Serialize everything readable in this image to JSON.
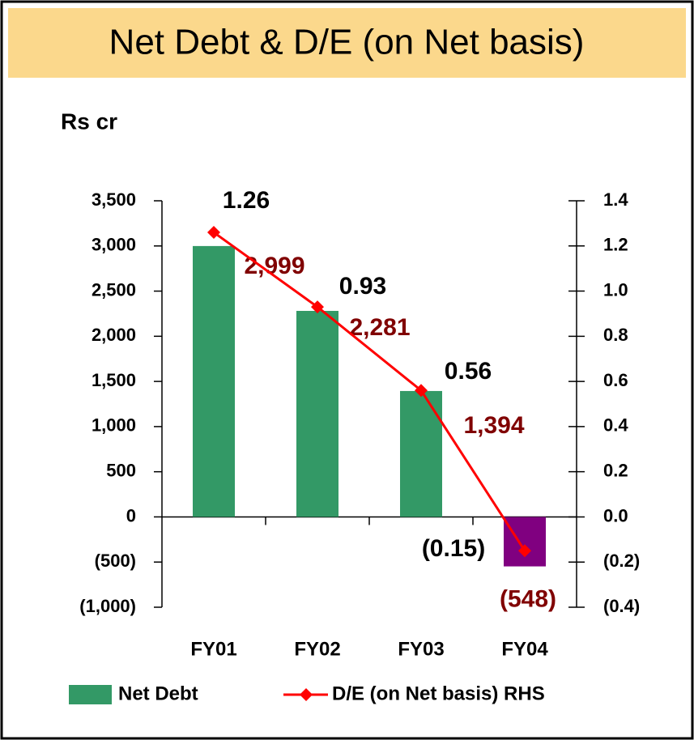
{
  "chart_data": {
    "type": "bar",
    "title": "Net Debt & D/E (on Net basis)",
    "y_axis_label": "Rs cr",
    "categories": [
      "FY01",
      "FY02",
      "FY03",
      "FY04"
    ],
    "series": [
      {
        "name": "Net Debt",
        "type": "bar",
        "color": "#339966",
        "negative_color": "#800080",
        "label_color": "#800000",
        "values": [
          2999,
          2281,
          1394,
          -548
        ],
        "value_labels": [
          "2,999",
          "2,281",
          "1,394",
          "(548)"
        ]
      },
      {
        "name": "D/E (on Net basis) RHS",
        "type": "line",
        "axis": "y2",
        "color": "#ff0000",
        "label_color": "#000000",
        "values": [
          1.26,
          0.93,
          0.56,
          -0.15
        ],
        "value_labels": [
          "1.26",
          "0.93",
          "0.56",
          "(0.15)"
        ]
      }
    ],
    "ylim": [
      -1000,
      3500
    ],
    "yticks": [
      {
        "value": -1000,
        "label": "(1,000)"
      },
      {
        "value": -500,
        "label": "(500)"
      },
      0,
      500,
      {
        "value": 1000,
        "label": "1,000"
      },
      {
        "value": 1500,
        "label": "1,500"
      },
      {
        "value": 2000,
        "label": "2,000"
      },
      {
        "value": 2500,
        "label": "2,500"
      },
      {
        "value": 3000,
        "label": "3,000"
      },
      {
        "value": 3500,
        "label": "3,500"
      }
    ],
    "y2lim": [
      -0.4,
      1.4
    ],
    "y2ticks": [
      {
        "value": -0.4,
        "label": "(0.4)"
      },
      {
        "value": -0.2,
        "label": "(0.2)"
      },
      {
        "value": 0,
        "label": "0.0"
      },
      0.2,
      0.4,
      0.6,
      0.8,
      {
        "value": 1.0,
        "label": "1.0"
      },
      1.2,
      1.4
    ],
    "legend": "bottom"
  }
}
